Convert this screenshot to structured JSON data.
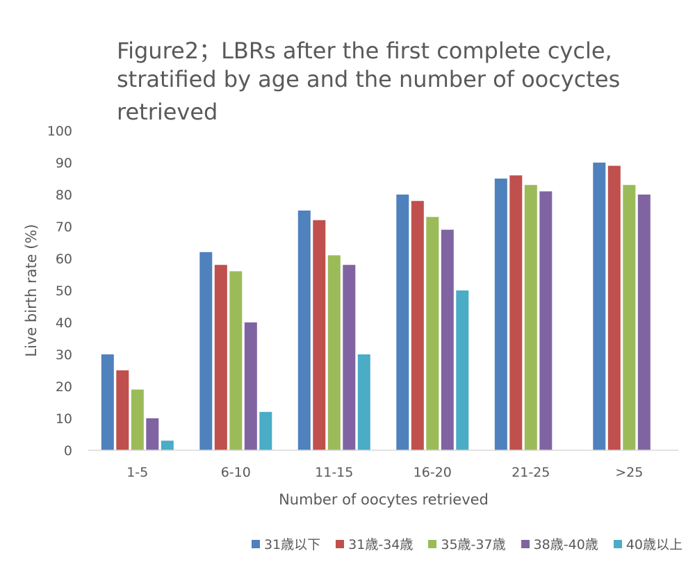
{
  "chart_data": {
    "type": "bar",
    "title": "Figure2；LBRs after the first complete cycle, stratified by age and the number of oocyctes retrieved",
    "title_lines": [
      "Figure2；LBRs after the first complete cycle,",
      "stratified by age and the number of oocyctes",
      "retrieved"
    ],
    "xlabel": "Number of oocytes retrieved",
    "ylabel": "Live birth rate (%)",
    "ylim": [
      0,
      100
    ],
    "yticks": [
      0,
      10,
      20,
      30,
      40,
      50,
      60,
      70,
      80,
      90,
      100
    ],
    "grid": false,
    "legend_position": "bottom-right",
    "categories": [
      "1-5",
      "6-10",
      "11-15",
      "16-20",
      "21-25",
      ">25"
    ],
    "series": [
      {
        "name": "31歳以下",
        "color": "#4F81BD",
        "values": [
          30,
          62,
          75,
          80,
          85,
          90
        ]
      },
      {
        "name": "31歳-34歳",
        "color": "#C0504D",
        "values": [
          25,
          58,
          72,
          78,
          86,
          89
        ]
      },
      {
        "name": "35歳-37歳",
        "color": "#9BBB59",
        "values": [
          19,
          56,
          61,
          73,
          83,
          83
        ]
      },
      {
        "name": "38歳-40歳",
        "color": "#8064A2",
        "values": [
          10,
          40,
          58,
          69,
          81,
          80
        ]
      },
      {
        "name": "40歳以上",
        "color": "#4BACC6",
        "values": [
          3,
          12,
          30,
          50,
          null,
          null
        ]
      }
    ]
  }
}
